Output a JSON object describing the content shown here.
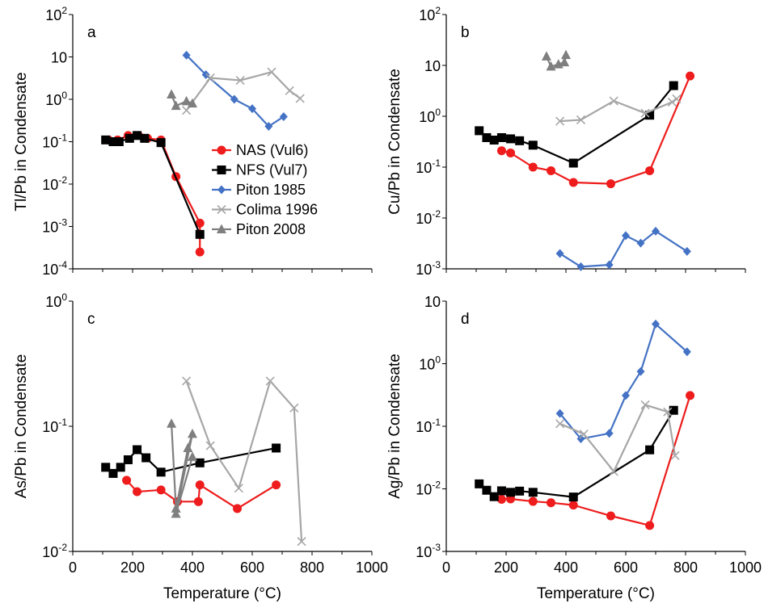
{
  "colors": {
    "NAS": "#ee1c1c",
    "NFS": "#000000",
    "Piton1985": "#4472c4",
    "Colima1996": "#a6a6a6",
    "Piton2008": "#7f7f7f"
  },
  "legend": {
    "placement": "panel-a-right",
    "entries": [
      {
        "key": "NAS",
        "label": "NAS (Vul6)",
        "marker": "circle"
      },
      {
        "key": "NFS",
        "label": "NFS (Vul7)",
        "marker": "square"
      },
      {
        "key": "Piton1985",
        "label": "Piton 1985",
        "marker": "diamond"
      },
      {
        "key": "Colima1996",
        "label": "Colima 1996",
        "marker": "x"
      },
      {
        "key": "Piton2008",
        "label": "Piton 2008",
        "marker": "triangle"
      }
    ]
  },
  "x_tick_labels": [
    "0",
    "200",
    "400",
    "600",
    "800",
    "1000"
  ],
  "chart_data": [
    {
      "type": "line",
      "panel": "a",
      "xlabel": "",
      "ylabel": "Tl/Pb in Condensate",
      "xlim": [
        0,
        1000
      ],
      "ylim": [
        0.0001,
        100
      ],
      "yscale": "log",
      "y_tick_labels": [
        {
          "v": 0.0001,
          "base": "10",
          "exp": "-4"
        },
        {
          "v": 0.001,
          "base": "10",
          "exp": "-3"
        },
        {
          "v": 0.01,
          "base": "10",
          "exp": "-2"
        },
        {
          "v": 0.1,
          "base": "10",
          "exp": "-1"
        },
        {
          "v": 1,
          "base": "10",
          "exp": "0"
        },
        {
          "v": 10,
          "base": "10",
          "exp": ""
        },
        {
          "v": 100,
          "base": "10",
          "exp": "2"
        }
      ],
      "series": [
        {
          "key": "NAS",
          "x": [
            120,
            150,
            185,
            220,
            250,
            295,
            345,
            425,
            425
          ],
          "y": [
            0.11,
            0.11,
            0.14,
            0.14,
            0.12,
            0.11,
            0.015,
            0.0012,
            0.00025
          ]
        },
        {
          "key": "NFS",
          "x": [
            110,
            135,
            155,
            190,
            215,
            240,
            295,
            425
          ],
          "y": [
            0.11,
            0.1,
            0.1,
            0.12,
            0.14,
            0.12,
            0.095,
            0.00065
          ]
        },
        {
          "key": "Piton1985",
          "x": [
            380,
            445,
            540,
            600,
            655,
            705
          ],
          "y": [
            11,
            3.8,
            1.0,
            0.6,
            0.23,
            0.39
          ]
        },
        {
          "key": "Colima1996",
          "x": [
            380,
            460,
            560,
            665,
            725,
            760
          ],
          "y": [
            0.55,
            3.2,
            2.8,
            4.4,
            1.6,
            1.05
          ]
        },
        {
          "key": "Piton2008",
          "x": [
            330,
            345,
            380,
            400
          ],
          "y": [
            1.3,
            0.7,
            0.9,
            0.8
          ]
        }
      ]
    },
    {
      "type": "line",
      "panel": "b",
      "xlabel": "",
      "ylabel": "Cu/Pb in Condensate",
      "xlim": [
        0,
        1000
      ],
      "ylim": [
        0.001,
        100
      ],
      "yscale": "log",
      "y_tick_labels": [
        {
          "v": 0.001,
          "base": "10",
          "exp": "-3"
        },
        {
          "v": 0.01,
          "base": "10",
          "exp": "-2"
        },
        {
          "v": 0.1,
          "base": "10",
          "exp": "-1"
        },
        {
          "v": 1,
          "base": "10",
          "exp": "0"
        },
        {
          "v": 10,
          "base": "10",
          "exp": ""
        },
        {
          "v": 100,
          "base": "10",
          "exp": "2"
        }
      ],
      "series": [
        {
          "key": "NAS",
          "x": [
            185,
            215,
            290,
            350,
            425,
            550,
            680,
            815
          ],
          "y": [
            0.21,
            0.19,
            0.1,
            0.085,
            0.05,
            0.047,
            0.085,
            6.2
          ]
        },
        {
          "key": "NFS",
          "x": [
            110,
            135,
            160,
            185,
            215,
            245,
            290,
            425,
            680,
            760
          ],
          "y": [
            0.52,
            0.38,
            0.34,
            0.38,
            0.36,
            0.33,
            0.27,
            0.12,
            1.05,
            4.0
          ]
        },
        {
          "key": "Piton1985",
          "x": [
            380,
            450,
            545,
            600,
            650,
            700,
            805
          ],
          "y": [
            0.002,
            0.0011,
            0.0012,
            0.0045,
            0.0032,
            0.0055,
            0.0022
          ]
        },
        {
          "key": "Colima1996",
          "x": [
            380,
            450,
            560,
            665,
            755,
            770
          ],
          "y": [
            0.8,
            0.85,
            2.0,
            1.15,
            1.9,
            2.2
          ]
        },
        {
          "key": "Piton2008",
          "x": [
            335,
            350,
            375,
            395,
            400
          ],
          "y": [
            15,
            9.5,
            10.5,
            11.5,
            16
          ]
        }
      ]
    },
    {
      "type": "line",
      "panel": "c",
      "xlabel": "Temperature (°C)",
      "ylabel": "As/Pb in Condensate",
      "xlim": [
        0,
        1000
      ],
      "ylim": [
        0.01,
        1
      ],
      "yscale": "log",
      "y_tick_labels": [
        {
          "v": 0.01,
          "base": "10",
          "exp": "-2"
        },
        {
          "v": 0.1,
          "base": "10",
          "exp": "-1"
        },
        {
          "v": 1,
          "base": "10",
          "exp": "0"
        }
      ],
      "series": [
        {
          "key": "NAS",
          "x": [
            180,
            215,
            295,
            350,
            420,
            425,
            550,
            680
          ],
          "y": [
            0.037,
            0.03,
            0.031,
            0.025,
            0.025,
            0.034,
            0.022,
            0.034
          ]
        },
        {
          "key": "NFS",
          "x": [
            110,
            135,
            160,
            185,
            215,
            245,
            295,
            425,
            680
          ],
          "y": [
            0.047,
            0.042,
            0.047,
            0.054,
            0.065,
            0.056,
            0.043,
            0.051,
            0.067
          ]
        },
        {
          "key": "Colima1996",
          "x": [
            380,
            460,
            555,
            660,
            740,
            765
          ],
          "y": [
            0.23,
            0.07,
            0.032,
            0.23,
            0.14,
            0.012
          ]
        },
        {
          "key": "Piton2008",
          "x": [
            330,
            345,
            385,
            400,
            345,
            400
          ],
          "y": [
            0.105,
            0.022,
            0.067,
            0.087,
            0.02,
            0.057
          ]
        }
      ]
    },
    {
      "type": "line",
      "panel": "d",
      "xlabel": "Temperature (°C)",
      "ylabel": "Ag/Pb in Condensate",
      "xlim": [
        0,
        1000
      ],
      "ylim": [
        0.001,
        10
      ],
      "yscale": "log",
      "y_tick_labels": [
        {
          "v": 0.001,
          "base": "10",
          "exp": "-3"
        },
        {
          "v": 0.01,
          "base": "10",
          "exp": "-2"
        },
        {
          "v": 0.1,
          "base": "10",
          "exp": "-1"
        },
        {
          "v": 1,
          "base": "10",
          "exp": "0"
        },
        {
          "v": 10,
          "base": "10",
          "exp": ""
        }
      ],
      "series": [
        {
          "key": "NAS",
          "x": [
            185,
            215,
            290,
            350,
            425,
            550,
            680,
            815
          ],
          "y": [
            0.0068,
            0.0069,
            0.0063,
            0.006,
            0.0055,
            0.0037,
            0.0026,
            0.31
          ]
        },
        {
          "key": "NFS",
          "x": [
            110,
            135,
            160,
            185,
            215,
            245,
            290,
            425,
            680,
            760
          ],
          "y": [
            0.012,
            0.0095,
            0.0075,
            0.0093,
            0.0088,
            0.0092,
            0.0088,
            0.0074,
            0.042,
            0.18
          ]
        },
        {
          "key": "Piton1985",
          "x": [
            380,
            450,
            545,
            600,
            650,
            700,
            805
          ],
          "y": [
            0.16,
            0.063,
            0.077,
            0.31,
            0.75,
            4.3,
            1.55
          ]
        },
        {
          "key": "Colima1996",
          "x": [
            380,
            460,
            560,
            665,
            740,
            765
          ],
          "y": [
            0.11,
            0.075,
            0.019,
            0.22,
            0.17,
            0.034
          ]
        }
      ]
    }
  ]
}
